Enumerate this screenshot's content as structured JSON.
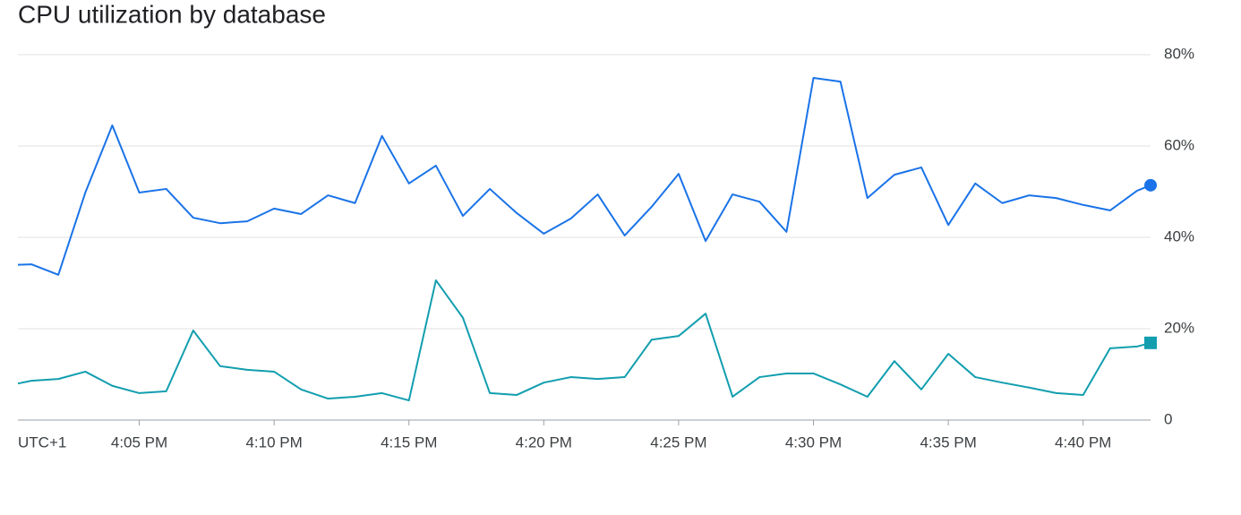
{
  "chart_data": {
    "type": "line",
    "title": "CPU utilization by database",
    "timezone": "UTC+1",
    "x": [
      "4:00:30 PM",
      "4:01 PM",
      "4:02 PM",
      "4:03 PM",
      "4:04 PM",
      "4:05 PM",
      "4:06 PM",
      "4:07 PM",
      "4:08 PM",
      "4:09 PM",
      "4:10 PM",
      "4:11 PM",
      "4:12 PM",
      "4:13 PM",
      "4:14 PM",
      "4:15 PM",
      "4:16 PM",
      "4:17 PM",
      "4:18 PM",
      "4:19 PM",
      "4:20 PM",
      "4:21 PM",
      "4:22 PM",
      "4:23 PM",
      "4:24 PM",
      "4:25 PM",
      "4:26 PM",
      "4:27 PM",
      "4:28 PM",
      "4:29 PM",
      "4:30 PM",
      "4:31 PM",
      "4:32 PM",
      "4:33 PM",
      "4:34 PM",
      "4:35 PM",
      "4:36 PM",
      "4:37 PM",
      "4:38 PM",
      "4:39 PM",
      "4:40 PM",
      "4:41 PM",
      "4:42 PM",
      "4:42:30 PM"
    ],
    "series": [
      {
        "color": "#1a73e8",
        "marker": "circle",
        "values": [
          34.0,
          34.1,
          31.8,
          49.8,
          64.5,
          49.8,
          50.6,
          44.3,
          43.1,
          43.5,
          46.3,
          45.1,
          49.2,
          47.5,
          62.2,
          51.8,
          55.7,
          44.7,
          50.6,
          45.3,
          40.8,
          44.1,
          49.4,
          40.4,
          46.7,
          53.9,
          39.2,
          49.4,
          47.8,
          41.2,
          74.9,
          74.1,
          48.6,
          53.7,
          55.3,
          42.7,
          51.8,
          47.5,
          49.2,
          48.6,
          47.1,
          45.9,
          50.2,
          51.4
        ]
      },
      {
        "color": "#129eaf",
        "marker": "square",
        "values": [
          8.0,
          8.6,
          9.0,
          10.6,
          7.5,
          5.9,
          6.3,
          19.6,
          11.8,
          11.0,
          10.6,
          6.7,
          4.7,
          5.1,
          5.9,
          4.3,
          30.6,
          22.4,
          5.9,
          5.5,
          8.2,
          9.4,
          9.0,
          9.4,
          17.6,
          18.4,
          23.3,
          5.1,
          9.4,
          10.2,
          10.2,
          7.8,
          5.1,
          12.9,
          6.7,
          14.5,
          9.4,
          8.2,
          7.1,
          5.9,
          5.5,
          15.7,
          16.1,
          16.9
        ]
      }
    ],
    "xlim": [
      "4:00:30 PM",
      "4:42:30 PM"
    ],
    "xticks": [
      "4:05 PM",
      "4:10 PM",
      "4:15 PM",
      "4:20 PM",
      "4:25 PM",
      "4:30 PM",
      "4:35 PM",
      "4:40 PM"
    ],
    "ylim": [
      0,
      80
    ],
    "yticks": [
      0,
      {
        "value": 20,
        "label": "20%"
      },
      {
        "value": 40,
        "label": "40%"
      },
      {
        "value": 60,
        "label": "60%"
      },
      {
        "value": 80,
        "label": "80%"
      }
    ],
    "grid": true
  }
}
